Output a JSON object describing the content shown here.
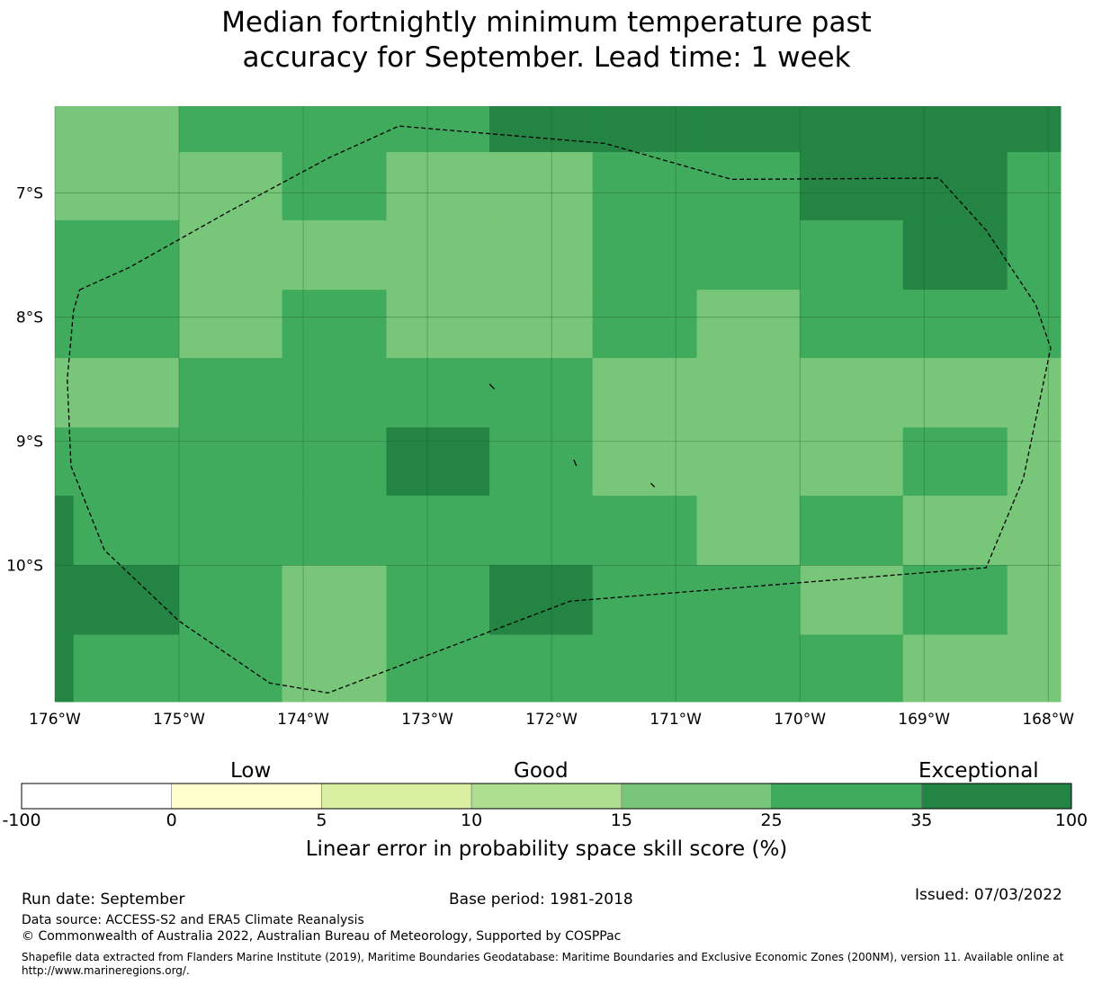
{
  "title": {
    "line1": "Median fortnightly minimum temperature past",
    "line2": "accuracy for September. Lead time: 1 week"
  },
  "map": {
    "lon_range": [
      -176,
      -167.9
    ],
    "lat_range": [
      -11.1,
      -6.3
    ],
    "lon_ticks": [
      {
        "value": -176,
        "label": "176°W"
      },
      {
        "value": -175,
        "label": "175°W"
      },
      {
        "value": -174,
        "label": "174°W"
      },
      {
        "value": -173,
        "label": "173°W"
      },
      {
        "value": -172,
        "label": "172°W"
      },
      {
        "value": -171,
        "label": "171°W"
      },
      {
        "value": -170,
        "label": "170°W"
      },
      {
        "value": -169,
        "label": "169°W"
      },
      {
        "value": -168,
        "label": "168°W"
      }
    ],
    "lat_ticks": [
      {
        "value": -7,
        "label": "7°S"
      },
      {
        "value": -8,
        "label": "8°S"
      },
      {
        "value": -9,
        "label": "9°S"
      },
      {
        "value": -10,
        "label": "10°S"
      }
    ],
    "grid": true,
    "cell_category_colors": [
      "#ffffff",
      "#ffffcc",
      "#d9f0a3",
      "#addd8e",
      "#78c679",
      "#41ab5d",
      "#238443"
    ],
    "grid_cells": {
      "lon_edges": [
        -176,
        -175.85,
        -175,
        -174.17,
        -173.33,
        -172.5,
        -171.67,
        -170.83,
        -170,
        -169.17,
        -168.33,
        -167.9
      ],
      "lat_edges": [
        -6.3,
        -6.67,
        -7.22,
        -7.78,
        -8.33,
        -8.89,
        -9.44,
        -10.0,
        -10.56,
        -11.1
      ],
      "category_index": [
        [
          4,
          4,
          5,
          5,
          5,
          6,
          6,
          6,
          6,
          6,
          6
        ],
        [
          4,
          4,
          4,
          5,
          4,
          4,
          5,
          5,
          6,
          6,
          5
        ],
        [
          5,
          5,
          4,
          4,
          4,
          4,
          5,
          5,
          5,
          6,
          5
        ],
        [
          5,
          5,
          4,
          5,
          4,
          4,
          5,
          4,
          5,
          5,
          5
        ],
        [
          4,
          4,
          5,
          5,
          5,
          5,
          4,
          4,
          4,
          4,
          4
        ],
        [
          5,
          5,
          5,
          5,
          6,
          5,
          4,
          4,
          4,
          5,
          4
        ],
        [
          6,
          5,
          5,
          5,
          5,
          5,
          5,
          4,
          5,
          4,
          4
        ],
        [
          6,
          6,
          5,
          4,
          5,
          6,
          5,
          5,
          4,
          5,
          4
        ],
        [
          6,
          5,
          5,
          4,
          5,
          5,
          5,
          5,
          5,
          4,
          4
        ]
      ]
    },
    "eez_boundary": [
      [
        -175.8,
        -7.78
      ],
      [
        -175.4,
        -7.6
      ],
      [
        -174.6,
        -7.15
      ],
      [
        -173.8,
        -6.72
      ],
      [
        -173.23,
        -6.46
      ],
      [
        -171.57,
        -6.6
      ],
      [
        -170.55,
        -6.89
      ],
      [
        -168.88,
        -6.88
      ],
      [
        -168.5,
        -7.3
      ],
      [
        -168.1,
        -7.9
      ],
      [
        -167.98,
        -8.25
      ],
      [
        -168.2,
        -9.3
      ],
      [
        -168.5,
        -10.02
      ],
      [
        -171.85,
        -10.29
      ],
      [
        -173.8,
        -11.03
      ],
      [
        -174.27,
        -10.95
      ],
      [
        -175.0,
        -10.45
      ],
      [
        -175.6,
        -9.88
      ],
      [
        -175.87,
        -9.2
      ],
      [
        -175.9,
        -8.5
      ],
      [
        -175.85,
        -7.95
      ],
      [
        -175.8,
        -7.78
      ]
    ],
    "islands": [
      [
        [
          -172.5,
          -8.54
        ],
        [
          -172.46,
          -8.58
        ]
      ],
      [
        [
          -171.82,
          -9.15
        ],
        [
          -171.8,
          -9.2
        ]
      ],
      [
        [
          -171.2,
          -9.34
        ],
        [
          -171.17,
          -9.37
        ]
      ]
    ]
  },
  "colorbar": {
    "segments": [
      {
        "from": "-100",
        "to": "0",
        "color": "#ffffff"
      },
      {
        "from": "0",
        "to": "5",
        "color": "#ffffcc"
      },
      {
        "from": "5",
        "to": "10",
        "color": "#d9f0a3"
      },
      {
        "from": "10",
        "to": "15",
        "color": "#addd8e"
      },
      {
        "from": "15",
        "to": "25",
        "color": "#78c679"
      },
      {
        "from": "25",
        "to": "35",
        "color": "#41ab5d"
      },
      {
        "from": "35",
        "to": "100",
        "color": "#238443"
      }
    ],
    "tick_labels": [
      "-100",
      "0",
      "5",
      "10",
      "15",
      "25",
      "35",
      "100"
    ],
    "category_labels": {
      "low": "Low",
      "good": "Good",
      "exceptional": "Exceptional"
    },
    "title": "Linear error in probability space skill score (%)"
  },
  "footer": {
    "run_date": "Run date: September",
    "base_period": "Base period: 1981-2018",
    "issued": "Issued: 07/03/2022",
    "data_source": "Data source: ACCESS-S2 and ERA5 Climate Reanalysis",
    "copyright": "© Commonwealth of Australia 2022, Australian Bureau of Meteorology, Supported by COSPPac",
    "shapefile": "Shapefile data extracted from Flanders Marine Institute (2019), Maritime Boundaries Geodatabase: Maritime Boundaries and Exclusive Economic Zones (200NM), version 11. Available online at http://www.marineregions.org/."
  }
}
